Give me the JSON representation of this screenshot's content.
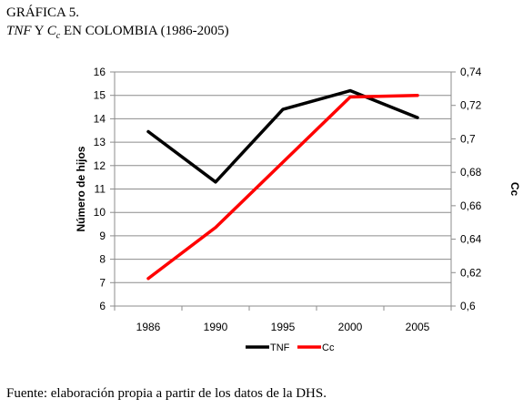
{
  "figure": {
    "label": "GRÁFICA 5.",
    "title_part1": "TNF",
    "title_part2": " Y ",
    "title_part3": "C",
    "title_sub": "c",
    "title_part4": " EN COLOMBIA (1986-2005)"
  },
  "source_note": "Fuente: elaboración propia a partir de los datos de la DHS.",
  "chart_data": {
    "type": "line",
    "x": [
      "1986",
      "1990",
      "1995",
      "2000",
      "2005"
    ],
    "ylabel": "Número de hijos",
    "y2label": "Cc",
    "ylim": [
      6,
      16
    ],
    "y2lim": [
      0.6,
      0.74
    ],
    "yticks": [
      "6",
      "7",
      "8",
      "9",
      "10",
      "11",
      "12",
      "13",
      "14",
      "15",
      "16"
    ],
    "y2ticks": [
      "0,6",
      "0,62",
      "0,64",
      "0,66",
      "0,68",
      "0,7",
      "0,72",
      "0,74"
    ],
    "grid": true,
    "legend_position": "bottom",
    "series": [
      {
        "name": "TNF",
        "axis": "left",
        "color": "#000000",
        "values": [
          13.45,
          11.3,
          14.4,
          15.2,
          14.05
        ]
      },
      {
        "name": "Cc",
        "axis": "right",
        "color": "#ff0000",
        "values": [
          0.6165,
          0.647,
          0.686,
          0.725,
          0.726
        ]
      }
    ]
  }
}
